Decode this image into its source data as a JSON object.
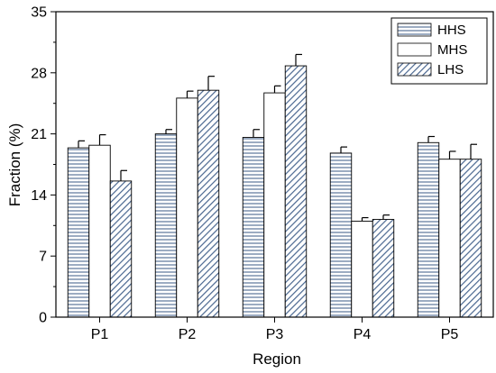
{
  "chart_data": {
    "type": "bar",
    "title": "",
    "xlabel": "Region",
    "ylabel": "Fraction (%)",
    "ylim": [
      0,
      35
    ],
    "yticks": [
      0,
      7,
      14,
      21,
      28,
      35
    ],
    "y_minor_step": 3.5,
    "grid": false,
    "legend_position": "top-right",
    "categories": [
      "P1",
      "P2",
      "P3",
      "P4",
      "P5"
    ],
    "series": [
      {
        "name": "HHS",
        "pattern": "horizontal-stripes",
        "values": [
          19.4,
          21.0,
          20.6,
          18.8,
          20.0
        ],
        "errors": [
          0.8,
          0.5,
          0.9,
          0.7,
          0.7
        ]
      },
      {
        "name": "MHS",
        "pattern": "none",
        "values": [
          19.7,
          25.1,
          25.7,
          11.0,
          18.1
        ],
        "errors": [
          1.2,
          0.8,
          0.8,
          0.4,
          0.9
        ]
      },
      {
        "name": "LHS",
        "pattern": "diagonal-stripes",
        "values": [
          15.6,
          26.0,
          28.8,
          11.2,
          18.1
        ],
        "errors": [
          1.2,
          1.6,
          1.3,
          0.5,
          1.7
        ]
      }
    ],
    "colors": {
      "stripe": "#4a6790",
      "bar_fill": "#ffffff",
      "outline": "#000000"
    }
  }
}
